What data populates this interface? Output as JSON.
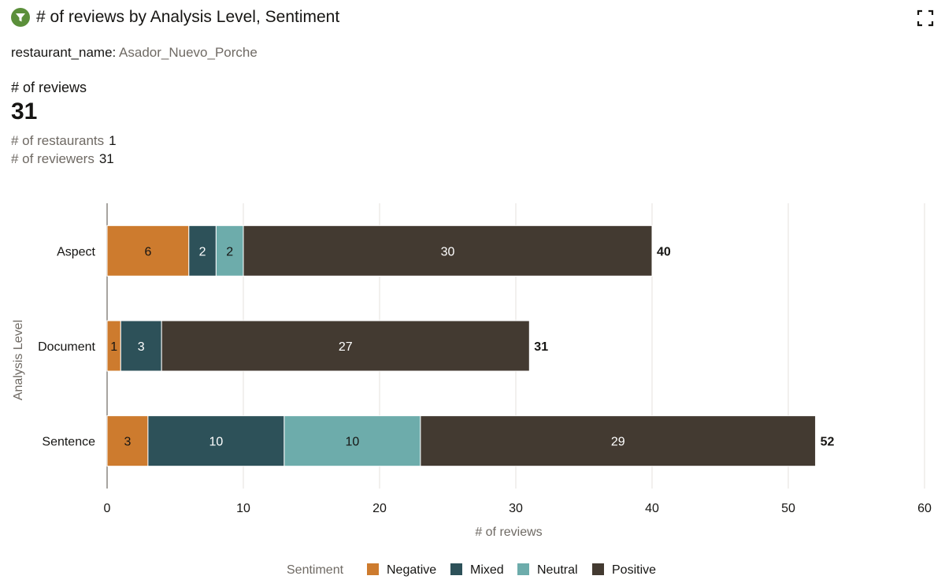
{
  "header": {
    "title": "# of reviews by Analysis Level, Sentiment"
  },
  "filter": {
    "key": "restaurant_name:",
    "value": "Asador_Nuevo_Porche"
  },
  "kpi": {
    "label": "# of reviews",
    "value": "31",
    "restaurants_label": "# of restaurants",
    "restaurants_value": "1",
    "reviewers_label": "# of reviewers",
    "reviewers_value": "31"
  },
  "chart_data": {
    "type": "bar",
    "orientation": "horizontal",
    "stacked": true,
    "categories": [
      "Aspect",
      "Document",
      "Sentence"
    ],
    "series": [
      {
        "name": "Negative",
        "color": "#cd7b2e",
        "text_color": "#161513",
        "values": [
          6,
          1,
          3
        ]
      },
      {
        "name": "Mixed",
        "color": "#2d5159",
        "text_color": "#ffffff",
        "values": [
          2,
          3,
          10
        ]
      },
      {
        "name": "Neutral",
        "color": "#6dacab",
        "text_color": "#161513",
        "values": [
          2,
          0,
          10
        ]
      },
      {
        "name": "Positive",
        "color": "#433a31",
        "text_color": "#ffffff",
        "values": [
          30,
          27,
          29
        ]
      }
    ],
    "totals": [
      40,
      31,
      52
    ],
    "xlabel": "# of reviews",
    "ylabel": "Analysis Level",
    "xlim": [
      0,
      60
    ],
    "xticks": [
      0,
      10,
      20,
      30,
      40,
      50,
      60
    ],
    "legend_title": "Sentiment",
    "legend_position": "bottom",
    "grid": true
  }
}
